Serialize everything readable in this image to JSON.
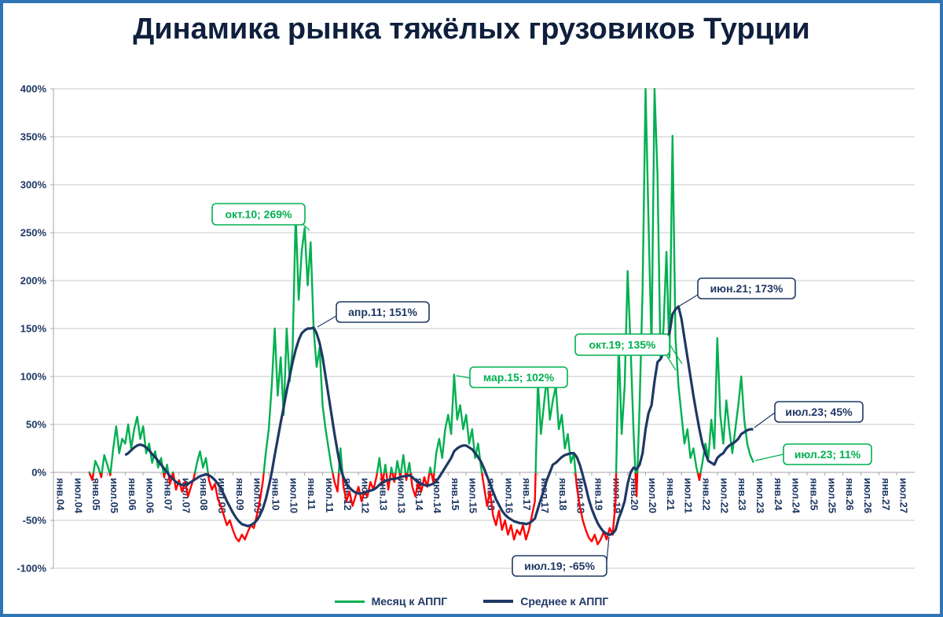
{
  "title": "Динамика рынка тяжёлых грузовиков Турции",
  "chart_data": {
    "type": "line",
    "title": "Динамика рынка тяжёлых грузовиков Турции",
    "ylim": [
      -100,
      400
    ],
    "grid": "horizontal",
    "legend_position": "bottom",
    "y_tick_labels": [
      "400%",
      "350%",
      "300%",
      "250%",
      "200%",
      "150%",
      "100%",
      "50%",
      "0%",
      "-50%",
      "-100%"
    ],
    "x_tick_labels": [
      "янв.04",
      "июл.04",
      "янв.05",
      "июл.05",
      "янв.06",
      "июл.06",
      "янв.07",
      "июл.07",
      "янв.08",
      "июл.08",
      "янв.09",
      "июл.09",
      "янв.10",
      "июл.10",
      "янв.11",
      "июл.11",
      "янв.12",
      "июл.12",
      "янв.13",
      "июл.13",
      "янв.14",
      "июл.14",
      "янв.15",
      "июл.15",
      "янв.16",
      "июл.16",
      "янв.17",
      "июл.17",
      "янв.18",
      "июл.18",
      "янв.19",
      "июл.19",
      "янв.20",
      "июл.20",
      "янв.21",
      "июл.21",
      "янв.22",
      "июл.22",
      "янв.23",
      "июл.23",
      "янв.24",
      "июл.24",
      "янв.25",
      "июл.25",
      "янв.26",
      "июл.26",
      "янв.27",
      "июл.27"
    ],
    "series": [
      {
        "name": "Месяц к АППГ",
        "start_month": "янв.05",
        "start_index": 12,
        "values": [
          0,
          -8,
          12,
          5,
          -5,
          18,
          8,
          -3,
          25,
          48,
          20,
          35,
          30,
          50,
          25,
          45,
          58,
          35,
          48,
          20,
          30,
          10,
          22,
          5,
          15,
          -5,
          8,
          -12,
          0,
          -18,
          -8,
          -20,
          -10,
          -25,
          -15,
          -5,
          10,
          22,
          5,
          15,
          -8,
          -18,
          -12,
          -28,
          -35,
          -45,
          -55,
          -50,
          -60,
          -68,
          -72,
          -65,
          -70,
          -62,
          -55,
          -58,
          -45,
          -30,
          -10,
          20,
          45,
          90,
          150,
          80,
          120,
          60,
          150,
          95,
          130,
          269,
          180,
          230,
          255,
          195,
          240,
          150,
          110,
          130,
          70,
          45,
          25,
          5,
          -10,
          -20,
          25,
          -15,
          -30,
          -20,
          -35,
          -25,
          -15,
          -30,
          -20,
          -25,
          -10,
          -18,
          -5,
          15,
          -12,
          8,
          -18,
          5,
          -10,
          12,
          -5,
          18,
          -8,
          10,
          -15,
          -25,
          -10,
          -20,
          -5,
          -15,
          5,
          -10,
          20,
          35,
          15,
          45,
          60,
          40,
          102,
          55,
          70,
          45,
          60,
          30,
          45,
          15,
          30,
          5,
          -15,
          -35,
          -20,
          -45,
          -55,
          -40,
          -60,
          -50,
          -65,
          -55,
          -70,
          -60,
          -65,
          -55,
          -70,
          -60,
          -45,
          -30,
          95,
          40,
          70,
          100,
          55,
          75,
          90,
          45,
          60,
          25,
          40,
          10,
          20,
          -15,
          -35,
          -50,
          -60,
          -68,
          -72,
          -65,
          -75,
          -70,
          -62,
          -70,
          -58,
          -65,
          -30,
          135,
          40,
          90,
          210,
          130,
          40,
          -25,
          70,
          190,
          400,
          260,
          130,
          400,
          310,
          120,
          150,
          230,
          120,
          351,
          140,
          90,
          60,
          30,
          45,
          15,
          25,
          5,
          -8,
          10,
          30,
          15,
          55,
          25,
          140,
          60,
          30,
          75,
          45,
          20,
          45,
          70,
          100,
          55,
          30,
          18,
          11
        ]
      },
      {
        "name": "Среднее к АППГ",
        "start_month": "янв.06",
        "start_index": 24,
        "values": [
          18,
          20,
          23,
          26,
          28,
          29,
          28,
          26,
          23,
          19,
          16,
          12,
          8,
          4,
          0,
          -4,
          -7,
          -10,
          -12,
          -13,
          -13,
          -12,
          -10,
          -8,
          -6,
          -4,
          -3,
          -2,
          -3,
          -5,
          -8,
          -12,
          -17,
          -23,
          -30,
          -36,
          -42,
          -47,
          -51,
          -54,
          -55,
          -56,
          -55,
          -53,
          -50,
          -45,
          -38,
          -28,
          -15,
          0,
          18,
          35,
          52,
          68,
          85,
          100,
          115,
          128,
          138,
          145,
          148,
          150,
          150,
          151,
          145,
          135,
          120,
          100,
          80,
          60,
          40,
          22,
          5,
          -5,
          -12,
          -16,
          -19,
          -21,
          -22,
          -22,
          -21,
          -20,
          -19,
          -18,
          -16,
          -13,
          -11,
          -9,
          -8,
          -7,
          -7,
          -6,
          -5,
          -4,
          -4,
          -3,
          -5,
          -8,
          -10,
          -12,
          -13,
          -14,
          -13,
          -12,
          -9,
          -5,
          0,
          5,
          10,
          15,
          22,
          25,
          27,
          28,
          28,
          26,
          24,
          20,
          16,
          11,
          4,
          -4,
          -12,
          -20,
          -28,
          -34,
          -40,
          -44,
          -47,
          -49,
          -51,
          -52,
          -53,
          -53,
          -54,
          -53,
          -51,
          -48,
          -38,
          -28,
          -18,
          -8,
          0,
          8,
          10,
          13,
          16,
          18,
          19,
          20,
          20,
          16,
          8,
          -3,
          -15,
          -28,
          -38,
          -46,
          -53,
          -58,
          -62,
          -64,
          -65,
          -64,
          -60,
          -48,
          -40,
          -30,
          -12,
          0,
          5,
          3,
          8,
          20,
          45,
          62,
          70,
          95,
          115,
          118,
          125,
          140,
          145,
          165,
          170,
          173,
          160,
          140,
          120,
          100,
          80,
          62,
          45,
          30,
          20,
          12,
          10,
          8,
          15,
          18,
          20,
          25,
          28,
          30,
          32,
          35,
          40,
          42,
          44,
          45,
          45
        ]
      }
    ],
    "annotations": [
      {
        "label": "окт.10; 269%",
        "series": "Месяц к АППГ",
        "month": "окт.10",
        "month_index": 81,
        "value": 269
      },
      {
        "label": "апр.11; 151%",
        "series": "Среднее к АППГ",
        "month": "апр.11",
        "month_index": 87,
        "value": 151
      },
      {
        "label": "мар.15; 102%",
        "series": "Месяц к АППГ",
        "month": "мар.15",
        "month_index": 134,
        "value": 102
      },
      {
        "label": "окт.19; 135%",
        "series": "Месяц к АППГ",
        "month": "окт.19",
        "month_index": 189,
        "value": 135
      },
      {
        "label": "июн.21; 173%",
        "series": "Среднее к АППГ",
        "month": "июн.21",
        "month_index": 209,
        "value": 173
      },
      {
        "label": "июл.23; 45%",
        "series": "Среднее к АППГ",
        "month": "июл.23",
        "month_index": 234,
        "value": 45
      },
      {
        "label": "июл.23; 11%",
        "series": "Месяц к АППГ",
        "month": "июл.23",
        "month_index": 234,
        "value": 11
      },
      {
        "label": "июл.19; -65%",
        "series": "Среднее к АППГ",
        "month": "июл.19",
        "month_index": 186,
        "value": -65
      }
    ],
    "legend": [
      {
        "label": "Месяц к АППГ"
      },
      {
        "label": "Среднее к АППГ"
      }
    ],
    "colors": {
      "monthly_positive": "#00b050",
      "monthly_negative": "#ff0000",
      "average": "#1f3864",
      "grid": "#c9c9c9",
      "axis_line": "#a6a6a6",
      "axis_text": "#1f3864",
      "border": "#2e75b6",
      "title_text": "#0f1f3d"
    }
  }
}
